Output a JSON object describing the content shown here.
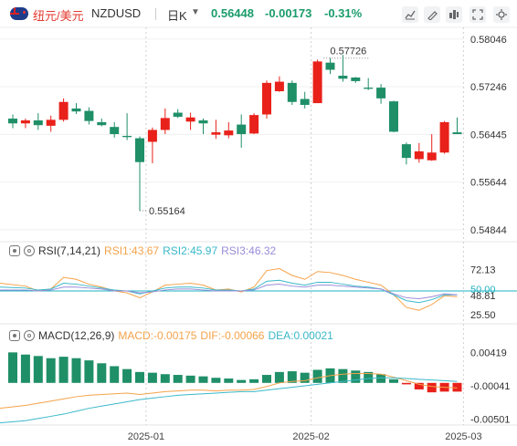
{
  "header": {
    "symbol_cn": "纽元/美元",
    "symbol": "NZDUSD",
    "period": "日K",
    "price": "0.56448",
    "change": "-0.00173",
    "change_pct": "-0.31%"
  },
  "toolbar": {
    "icons": [
      "chart-style-icon",
      "drawing-tool-icon",
      "indicator-icon",
      "fullscreen-icon",
      "settings-icon"
    ]
  },
  "colors": {
    "up": "#e8211a",
    "down": "#1f8f68",
    "rsi1": "#f5a34a",
    "rsi2": "#3ab8c9",
    "rsi3": "#9a8cd9",
    "dif": "#f5a34a",
    "dea": "#3ab8c9",
    "hline": "#1fb3c4"
  },
  "chart_data": [
    {
      "type": "candlestick",
      "y_ticks": [
        "0.58046",
        "0.57246",
        "0.56445",
        "0.55644",
        "0.54844"
      ],
      "ylim": [
        0.5475,
        0.5812
      ],
      "x_labels": [
        {
          "label": "2025-01",
          "index": 11
        },
        {
          "label": "2025-02",
          "index": 24
        },
        {
          "label": "2025-03",
          "index": 36
        }
      ],
      "annotations": [
        {
          "text": "0.57726",
          "value": 0.57726,
          "index": 28
        },
        {
          "text": "0.55164",
          "value": 0.55164,
          "index": 10
        }
      ],
      "candles": [
        {
          "o": 0.5671,
          "h": 0.5678,
          "l": 0.5655,
          "c": 0.5663
        },
        {
          "o": 0.5663,
          "h": 0.5671,
          "l": 0.5655,
          "c": 0.5668
        },
        {
          "o": 0.5668,
          "h": 0.568,
          "l": 0.5652,
          "c": 0.566
        },
        {
          "o": 0.5659,
          "h": 0.5676,
          "l": 0.5649,
          "c": 0.5669
        },
        {
          "o": 0.5669,
          "h": 0.5705,
          "l": 0.5666,
          "c": 0.5699
        },
        {
          "o": 0.5688,
          "h": 0.5697,
          "l": 0.5679,
          "c": 0.5683
        },
        {
          "o": 0.5684,
          "h": 0.569,
          "l": 0.5661,
          "c": 0.5667
        },
        {
          "o": 0.5665,
          "h": 0.5671,
          "l": 0.5658,
          "c": 0.566
        },
        {
          "o": 0.5657,
          "h": 0.5665,
          "l": 0.5639,
          "c": 0.5645
        },
        {
          "o": 0.5642,
          "h": 0.568,
          "l": 0.5635,
          "c": 0.564
        },
        {
          "o": 0.5638,
          "h": 0.5641,
          "l": 0.5516,
          "c": 0.5598
        },
        {
          "o": 0.5632,
          "h": 0.5656,
          "l": 0.5596,
          "c": 0.5652
        },
        {
          "o": 0.5652,
          "h": 0.5688,
          "l": 0.5645,
          "c": 0.5672
        },
        {
          "o": 0.5681,
          "h": 0.5687,
          "l": 0.5672,
          "c": 0.5674
        },
        {
          "o": 0.5666,
          "h": 0.5681,
          "l": 0.5652,
          "c": 0.5673
        },
        {
          "o": 0.5668,
          "h": 0.5671,
          "l": 0.5645,
          "c": 0.5663
        },
        {
          "o": 0.5644,
          "h": 0.5669,
          "l": 0.5637,
          "c": 0.5648
        },
        {
          "o": 0.5643,
          "h": 0.5665,
          "l": 0.5638,
          "c": 0.5651
        },
        {
          "o": 0.5661,
          "h": 0.5678,
          "l": 0.5622,
          "c": 0.5645
        },
        {
          "o": 0.5646,
          "h": 0.568,
          "l": 0.5645,
          "c": 0.5677
        },
        {
          "o": 0.5678,
          "h": 0.5735,
          "l": 0.5671,
          "c": 0.5731
        },
        {
          "o": 0.5717,
          "h": 0.5742,
          "l": 0.5716,
          "c": 0.5733
        },
        {
          "o": 0.5731,
          "h": 0.5735,
          "l": 0.5694,
          "c": 0.5699
        },
        {
          "o": 0.5704,
          "h": 0.5716,
          "l": 0.5688,
          "c": 0.5694
        },
        {
          "o": 0.5697,
          "h": 0.577,
          "l": 0.5697,
          "c": 0.5767
        },
        {
          "o": 0.5765,
          "h": 0.5773,
          "l": 0.5746,
          "c": 0.5753
        },
        {
          "o": 0.5743,
          "h": 0.5778,
          "l": 0.5733,
          "c": 0.5738
        },
        {
          "o": 0.574,
          "h": 0.5741,
          "l": 0.5731,
          "c": 0.5734
        },
        {
          "o": 0.5723,
          "h": 0.5739,
          "l": 0.5719,
          "c": 0.5721
        },
        {
          "o": 0.5723,
          "h": 0.5729,
          "l": 0.5696,
          "c": 0.5705
        },
        {
          "o": 0.57,
          "h": 0.5701,
          "l": 0.5648,
          "c": 0.5649
        },
        {
          "o": 0.5628,
          "h": 0.5631,
          "l": 0.5594,
          "c": 0.5605
        },
        {
          "o": 0.5603,
          "h": 0.563,
          "l": 0.5597,
          "c": 0.5616
        },
        {
          "o": 0.5601,
          "h": 0.5645,
          "l": 0.56,
          "c": 0.5614
        },
        {
          "o": 0.5614,
          "h": 0.5667,
          "l": 0.5612,
          "c": 0.5665
        },
        {
          "o": 0.5648,
          "h": 0.5673,
          "l": 0.5645,
          "c": 0.5645
        }
      ]
    },
    {
      "type": "line",
      "name": "RSI(7,14,21)",
      "legend": [
        {
          "label": "RSI1:43.67",
          "color_key": "rsi1"
        },
        {
          "label": "RSI2:45.97",
          "color_key": "rsi2"
        },
        {
          "label": "RSI3:46.32",
          "color_key": "rsi3"
        }
      ],
      "y_ticks": [
        "72.13",
        "50.00",
        "48.81",
        "25.50"
      ],
      "ylim": [
        18,
        82
      ],
      "hline": 50,
      "series": [
        {
          "color_key": "rsi1",
          "values": [
            58,
            55,
            50,
            52,
            64,
            62,
            57,
            54,
            50,
            48,
            43,
            49,
            56,
            57,
            58,
            56,
            51,
            52,
            49,
            54,
            71,
            73,
            66,
            62,
            70,
            69,
            66,
            62,
            59,
            56,
            46,
            33,
            30,
            36,
            45,
            44
          ]
        },
        {
          "color_key": "rsi2",
          "values": [
            54,
            53,
            51,
            52,
            58,
            57,
            55,
            53,
            51,
            50,
            47,
            50,
            53,
            54,
            54,
            53,
            51,
            51,
            50,
            52,
            60,
            61,
            58,
            56,
            59,
            59,
            57,
            55,
            54,
            52,
            46,
            40,
            38,
            41,
            46,
            46
          ]
        },
        {
          "color_key": "rsi3",
          "values": [
            51,
            51,
            50,
            51,
            54,
            54,
            53,
            52,
            50,
            50,
            48,
            49,
            51,
            52,
            52,
            51,
            50,
            50,
            50,
            51,
            56,
            57,
            55,
            54,
            56,
            56,
            55,
            54,
            53,
            52,
            47,
            43,
            42,
            44,
            47,
            46
          ]
        }
      ]
    },
    {
      "type": "bar",
      "name": "MACD(12,26,9)",
      "legend": [
        {
          "label": "MACD:-0.00175",
          "color_key": "up"
        },
        {
          "label": "DIF:-0.00066",
          "color_key": "dif"
        },
        {
          "label": "DEA:0.00021",
          "color_key": "dea"
        }
      ],
      "y_ticks": [
        "0.00419",
        "-0.00041",
        "-0.00501"
      ],
      "ylim": [
        -0.0058,
        0.0055
      ],
      "macd": [
        0.0042,
        0.0039,
        0.0037,
        0.0034,
        0.0036,
        0.0034,
        0.0031,
        0.0027,
        0.0023,
        0.0019,
        0.0015,
        0.0014,
        0.0012,
        0.0011,
        0.001,
        0.0009,
        0.0007,
        0.0006,
        0.0004,
        0.0005,
        0.0011,
        0.0015,
        0.0016,
        0.0014,
        0.0018,
        0.002,
        0.0019,
        0.0017,
        0.0015,
        0.0012,
        0.0005,
        -0.0002,
        -0.0009,
        -0.0013,
        -0.0012,
        -0.0012
      ],
      "dif": [
        -0.0035,
        -0.0031,
        -0.0028,
        -0.0025,
        -0.0022,
        -0.0019,
        -0.0017,
        -0.0016,
        -0.0015,
        -0.0014,
        -0.0016,
        -0.0014,
        -0.0012,
        -0.0011,
        -0.001,
        -0.001,
        -0.0011,
        -0.001,
        -0.001,
        -0.0009,
        -0.0005,
        0.0,
        0.0002,
        0.0003,
        0.0007,
        0.001,
        0.0012,
        0.0013,
        0.0013,
        0.0012,
        0.0008,
        0.0003,
        -0.0002,
        -0.0005,
        -0.0006,
        -0.0007
      ],
      "dea": [
        -0.0055,
        -0.0052,
        -0.0049,
        -0.0046,
        -0.0043,
        -0.0039,
        -0.0035,
        -0.0032,
        -0.0029,
        -0.0026,
        -0.0023,
        -0.0021,
        -0.0019,
        -0.0017,
        -0.0016,
        -0.0015,
        -0.0014,
        -0.0013,
        -0.0012,
        -0.0012,
        -0.001,
        -0.0008,
        -0.0006,
        -0.0004,
        -0.0002,
        0.0,
        0.0002,
        0.0004,
        0.0006,
        0.0007,
        0.0007,
        0.0006,
        0.0005,
        0.0004,
        0.0003,
        0.0002
      ]
    }
  ]
}
